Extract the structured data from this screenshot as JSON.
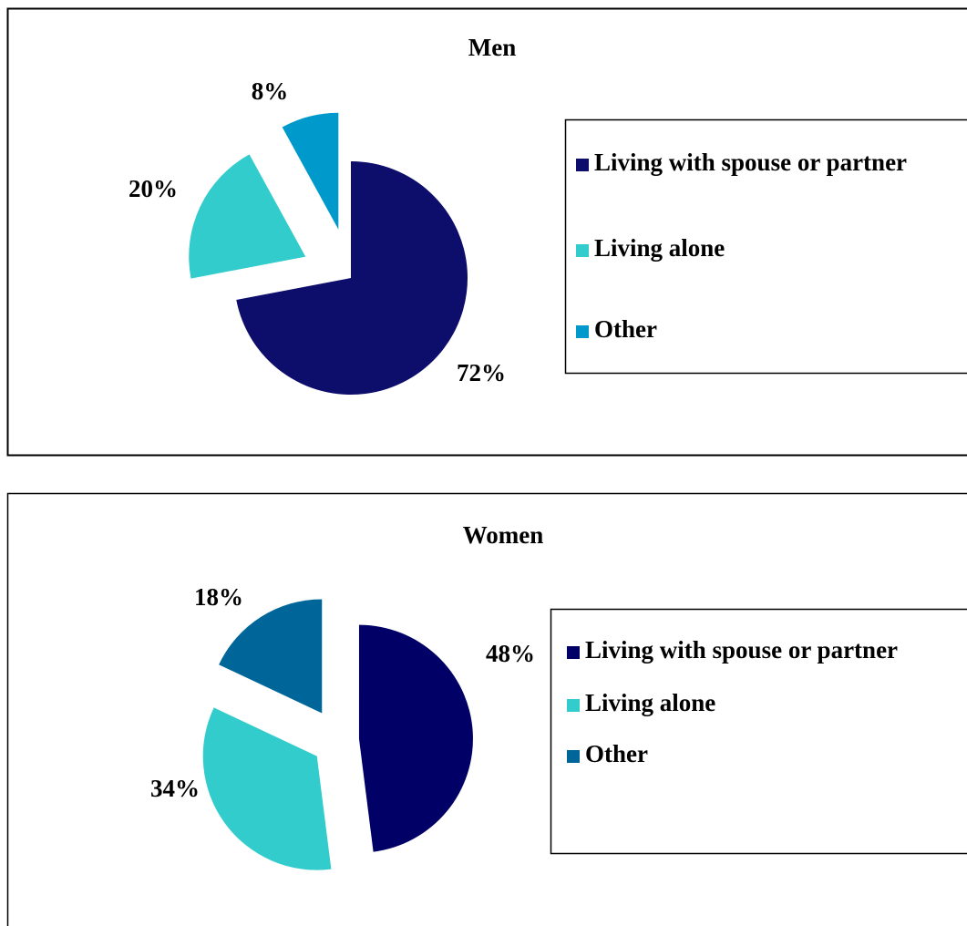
{
  "chart_data": [
    {
      "type": "pie",
      "title": "Men",
      "categories": [
        "Living with spouse or partner",
        "Living alone",
        "Other"
      ],
      "values": [
        72,
        20,
        8
      ],
      "value_labels": [
        "72%",
        "20%",
        "8%"
      ],
      "colors": [
        "#0d0d6b",
        "#33cccc",
        "#0099cc"
      ]
    },
    {
      "type": "pie",
      "title": "Women",
      "categories": [
        "Living with spouse or partner",
        "Living alone",
        "Other"
      ],
      "values": [
        48,
        34,
        18
      ],
      "value_labels": [
        "48%",
        "34%",
        "18%"
      ],
      "colors": [
        "#000066",
        "#33cccc",
        "#006699"
      ]
    }
  ]
}
